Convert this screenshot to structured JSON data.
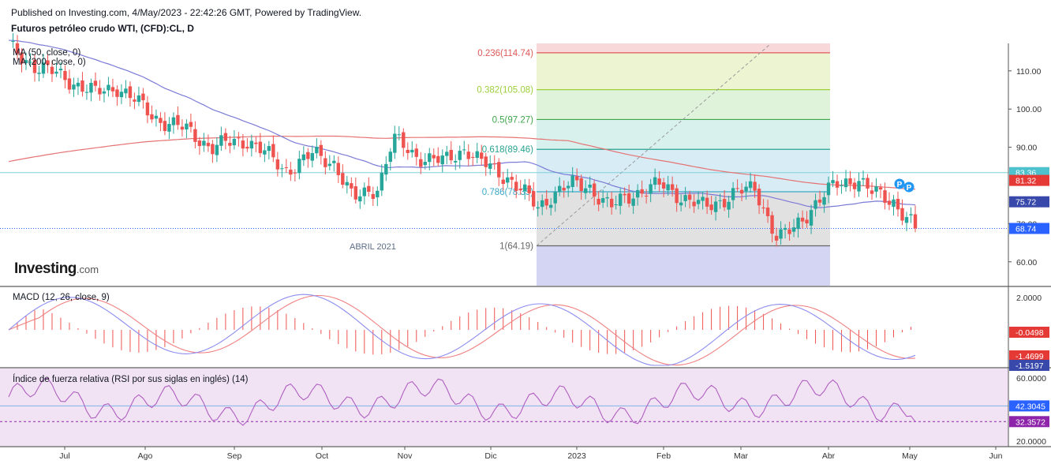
{
  "header": {
    "published": "Published on Investing.com, 4/May/2023 - 22:42:26 GMT, Powered by TradingView.",
    "title": "Futuros petróleo crudo WTI, (CFD):CL, D"
  },
  "logo": {
    "main": "Investing",
    "suffix": ".com"
  },
  "colors": {
    "up": "#26a69a",
    "down": "#ef5350",
    "ma50": "#7b7bd6",
    "ma200": "#e57373",
    "macd": "#8c8cf0",
    "signal": "#f08080",
    "rsi": "#b05fc0",
    "rsi_band": "#f1e3f4"
  },
  "chart_data": [
    {
      "type": "candlestick",
      "title": "Futuros petróleo crudo WTI, (CFD):CL, D",
      "x_ticks": [
        "Jul",
        "Ago",
        "Sep",
        "Oct",
        "Nov",
        "Dic",
        "2023",
        "Feb",
        "Mar",
        "Abr",
        "May",
        "Jun"
      ],
      "y_ticks": [
        "110.00",
        "100.00",
        "90.00",
        "70.00",
        "60.00"
      ],
      "ylim": [
        57,
        117
      ],
      "indicators": [
        "MA (50, close, 0)",
        "MA (200, close, 0)"
      ],
      "price_labels": [
        {
          "text": "83.36",
          "value": 83.36,
          "color": "#4dc1cc"
        },
        {
          "text": "81.32",
          "value": 81.32,
          "color": "#e53935"
        },
        {
          "text": "75.72",
          "value": 75.72,
          "color": "#3949ab"
        },
        {
          "text": "68.74",
          "value": 68.74,
          "color": "#2962ff"
        }
      ],
      "horizontal_lines": [
        {
          "value": 83.36,
          "style": "solid"
        },
        {
          "value": 68.74,
          "style": "dotted"
        }
      ],
      "fibonacci": {
        "levels": [
          {
            "label": "0.236(114.74)",
            "value": 114.74,
            "color": "#e05a5a"
          },
          {
            "label": "0.382(105.08)",
            "value": 105.08,
            "color": "#9ccf3a"
          },
          {
            "label": "0.5(97.27)",
            "value": 97.27,
            "color": "#3fa64a"
          },
          {
            "label": "0.618(89.46)",
            "value": 89.46,
            "color": "#29a38f"
          },
          {
            "label": "0.786(78.35)",
            "value": 78.35,
            "color": "#3aa7c7"
          },
          {
            "label": "1(64.19)",
            "value": 64.19,
            "color": "#666666"
          }
        ]
      },
      "annotation": "ABRIL 2021",
      "markers": [
        "P",
        "P"
      ]
    },
    {
      "type": "line",
      "title": "MACD (12, 26, close, 9)",
      "y_ticks": [
        "2.0000"
      ],
      "value_labels": [
        {
          "text": "-0.0498",
          "color": "#e53935"
        },
        {
          "text": "-1.4699",
          "color": "#e53935"
        },
        {
          "text": "-1.5197",
          "color": "#3949ab"
        }
      ]
    },
    {
      "type": "line",
      "title": "Índice de fuerza relativa (RSI por sus siglas en inglés) (14)",
      "y_ticks": [
        "60.0000",
        "20.0000"
      ],
      "ylim": [
        17,
        68
      ],
      "value_labels": [
        {
          "text": "42.3045",
          "value": 42.3045,
          "color": "#2962ff"
        },
        {
          "text": "32.3572",
          "value": 32.3572,
          "color": "#8e24aa"
        }
      ]
    }
  ]
}
